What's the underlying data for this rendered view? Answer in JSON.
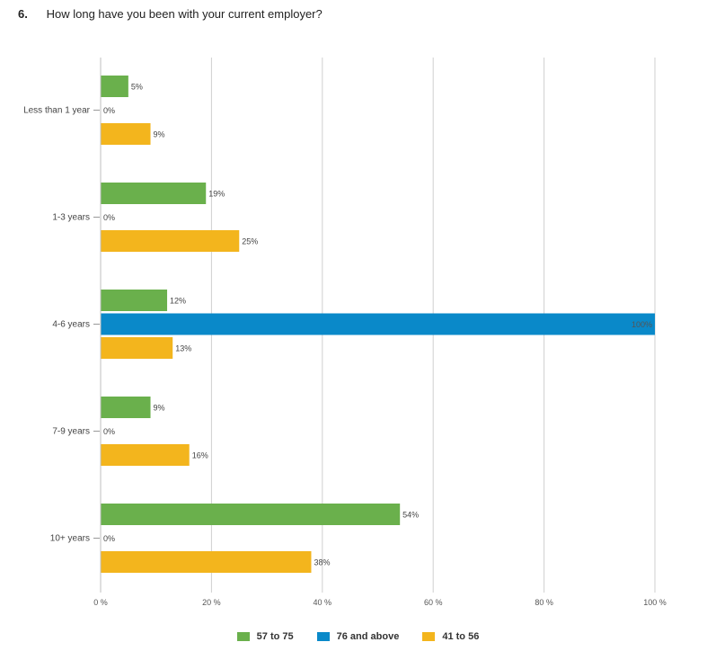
{
  "question": {
    "number": "6.",
    "text": "How long have you been with your current employer?"
  },
  "chart_data": {
    "type": "bar",
    "orientation": "horizontal",
    "categories": [
      "Less than 1 year",
      "1-3 years",
      "4-6 years",
      "7-9 years",
      "10+ years"
    ],
    "series": [
      {
        "name": "57 to 75",
        "color": "#6ab04c",
        "values": [
          5,
          19,
          12,
          9,
          54
        ],
        "labels": [
          "5%",
          "19%",
          "12%",
          "9%",
          "54%"
        ]
      },
      {
        "name": "76 and above",
        "color": "#0a89c9",
        "values": [
          0,
          0,
          100,
          0,
          0
        ],
        "labels": [
          "0%",
          "0%",
          "100%",
          "0%",
          "0%"
        ]
      },
      {
        "name": "41 to 56",
        "color": "#f3b51d",
        "values": [
          9,
          25,
          13,
          16,
          38
        ],
        "labels": [
          "9%",
          "25%",
          "13%",
          "16%",
          "38%"
        ]
      }
    ],
    "x_ticks": [
      0,
      20,
      40,
      60,
      80,
      100
    ],
    "x_tick_labels": [
      "0 %",
      "20 %",
      "40 %",
      "60 %",
      "80 %",
      "100 %"
    ],
    "xlim": [
      0,
      100
    ],
    "grid": true,
    "legend_position": "bottom"
  }
}
